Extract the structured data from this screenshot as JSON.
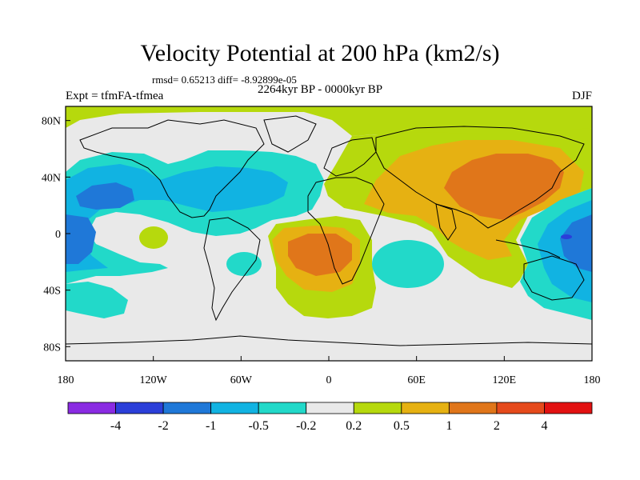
{
  "title": "Velocity Potential at 200 hPa (km2/s)",
  "stats": "rmsd= 0.65213 diff= -8.92899e-05",
  "expt": "Expt = tfmFA-tfmea",
  "period": "2264kyr BP - 0000kyr BP",
  "season": "DJF",
  "axes": {
    "x_ticks": [
      "180",
      "120W",
      "60W",
      "0",
      "60E",
      "120E",
      "180"
    ],
    "y_ticks": [
      "80N",
      "40N",
      "0",
      "40S",
      "80S"
    ]
  },
  "colorbar": {
    "labels": [
      "-4",
      "-2",
      "-1",
      "-0.5",
      "-0.2",
      "0.2",
      "0.5",
      "1",
      "2",
      "4"
    ],
    "colors": [
      "#8a2be2",
      "#2b3fd9",
      "#1f78d8",
      "#11b3e2",
      "#22d9c9",
      "#e9e9e9",
      "#b6d90d",
      "#e6b112",
      "#e0761a",
      "#e54a1c",
      "#e21111"
    ]
  },
  "colors": {
    "neutral": "#e9e9e9",
    "lt_pos": "#b6d90d",
    "med_pos": "#e6b112",
    "strong_pos": "#e0761a",
    "lt_neg": "#22d9c9",
    "med_neg": "#11b3e2",
    "strong_neg": "#1f78d8",
    "very_neg": "#2b3fd9"
  }
}
